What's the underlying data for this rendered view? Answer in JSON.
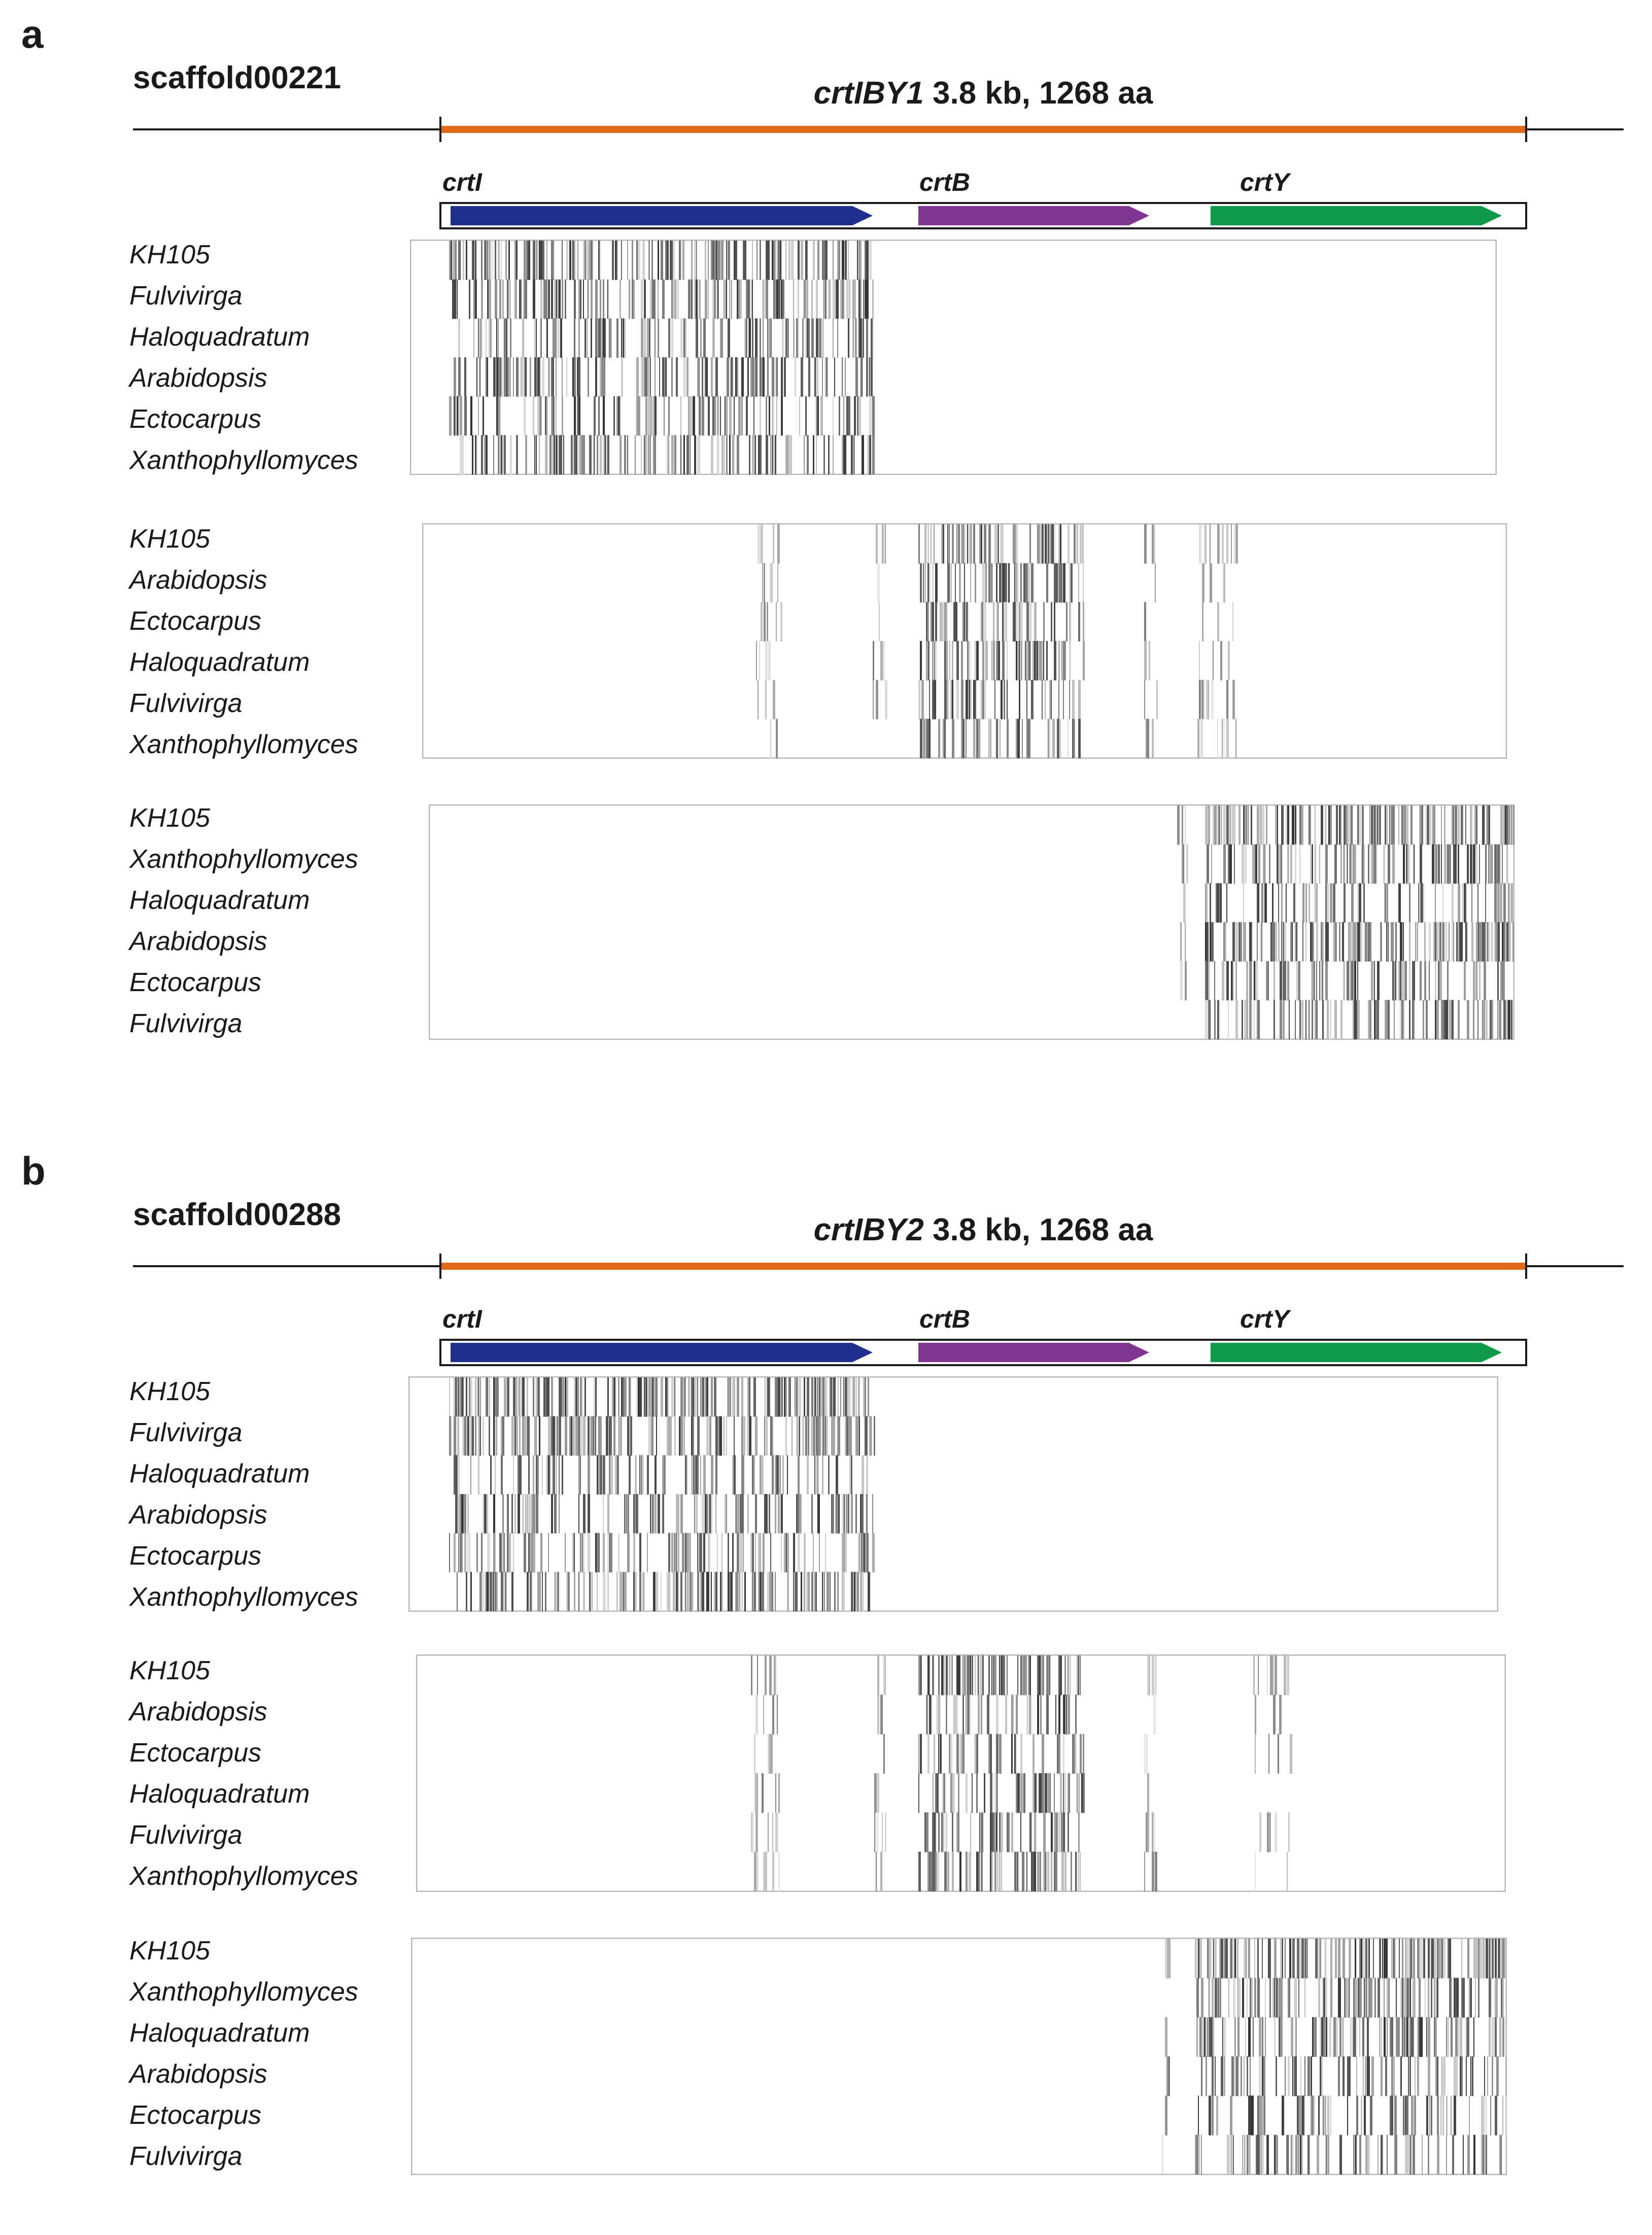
{
  "colors": {
    "gene_line": "#e06a17",
    "crtI": "#1f2f8c",
    "crtB": "#7f3591",
    "crtY": "#0e9a48",
    "axis": "#1a1a1a",
    "box_border": "#b8b8b8"
  },
  "panels": [
    {
      "letter": "a",
      "scaffold": "scaffold00221",
      "gene_name": "crtIBY1",
      "gene_size": "3.8 kb, 1268 aa",
      "domains": [
        {
          "name": "crtI",
          "label": "crtI"
        },
        {
          "name": "crtB",
          "label": "crtB"
        },
        {
          "name": "crtY",
          "label": "crtY"
        }
      ],
      "alignments": [
        {
          "query_domain": "crtI",
          "species": [
            "KH105",
            "Fulvivirga",
            "Haloquadratum",
            "Arabidopsis",
            "Ectocarpus",
            "Xanthophyllomyces"
          ]
        },
        {
          "query_domain": "crtB",
          "species": [
            "KH105",
            "Arabidopsis",
            "Ectocarpus",
            "Haloquadratum",
            "Fulvivirga",
            "Xanthophyllomyces"
          ]
        },
        {
          "query_domain": "crtY",
          "species": [
            "KH105",
            "Xanthophyllomyces",
            "Haloquadratum",
            "Arabidopsis",
            "Ectocarpus",
            "Fulvivirga"
          ]
        }
      ]
    },
    {
      "letter": "b",
      "scaffold": "scaffold00288",
      "gene_name": "crtIBY2",
      "gene_size": "3.8 kb, 1268 aa",
      "domains": [
        {
          "name": "crtI",
          "label": "crtI"
        },
        {
          "name": "crtB",
          "label": "crtB"
        },
        {
          "name": "crtY",
          "label": "crtY"
        }
      ],
      "alignments": [
        {
          "query_domain": "crtI",
          "species": [
            "KH105",
            "Fulvivirga",
            "Haloquadratum",
            "Arabidopsis",
            "Ectocarpus",
            "Xanthophyllomyces"
          ]
        },
        {
          "query_domain": "crtB",
          "species": [
            "KH105",
            "Arabidopsis",
            "Ectocarpus",
            "Haloquadratum",
            "Fulvivirga",
            "Xanthophyllomyces"
          ]
        },
        {
          "query_domain": "crtY",
          "species": [
            "KH105",
            "Xanthophyllomyces",
            "Haloquadratum",
            "Arabidopsis",
            "Ectocarpus",
            "Fulvivirga"
          ]
        }
      ]
    }
  ]
}
